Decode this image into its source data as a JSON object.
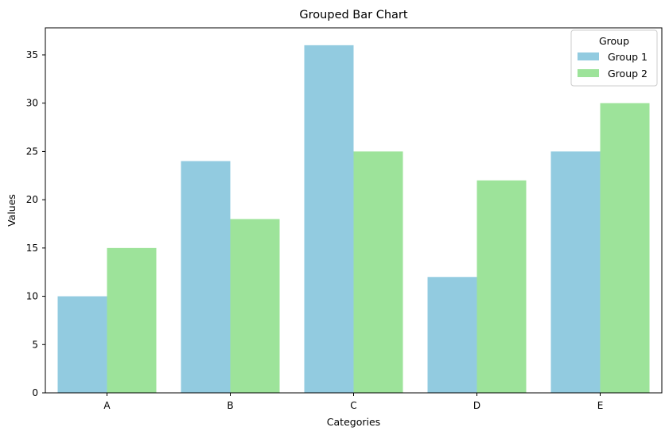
{
  "chart_data": {
    "type": "bar",
    "title": "Grouped Bar Chart",
    "xlabel": "Categories",
    "ylabel": "Values",
    "categories": [
      "A",
      "B",
      "C",
      "D",
      "E"
    ],
    "series": [
      {
        "name": "Group 1",
        "values": [
          10,
          24,
          36,
          12,
          25
        ],
        "color": "#8ecae6"
      },
      {
        "name": "Group 2",
        "values": [
          15,
          18,
          25,
          22,
          30
        ],
        "color": "#99e699"
      }
    ],
    "ylim": [
      0,
      37.8
    ],
    "yticks": [
      0,
      5,
      10,
      15,
      20,
      25,
      30,
      35
    ],
    "grid": false,
    "legend": {
      "title": "Group",
      "placement": "top-right"
    }
  },
  "colors": {
    "group1": "#92cbe0",
    "group2": "#9de39a"
  }
}
